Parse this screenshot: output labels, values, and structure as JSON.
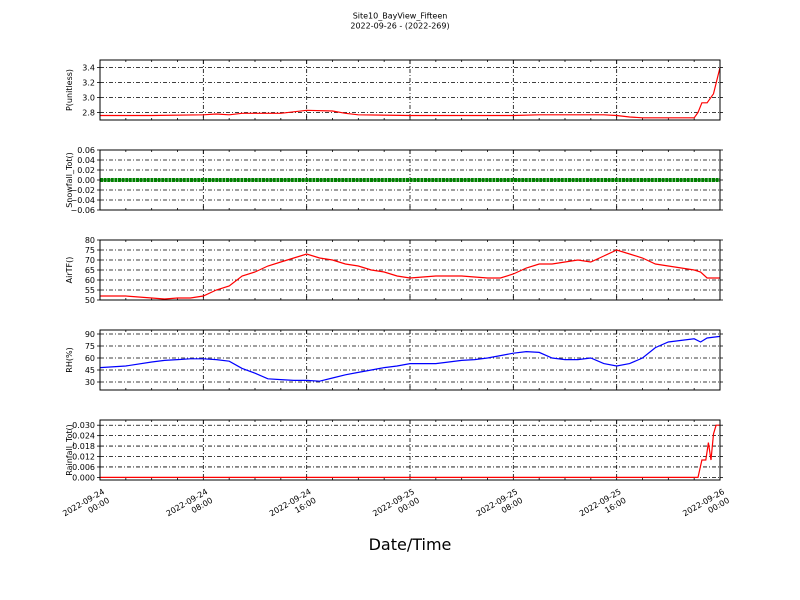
{
  "chart_data": {
    "title": "Site10_BayView_Fifteen",
    "subtitle": "2022-09-26 - (2022-269)",
    "xlabel": "Date/Time",
    "type": "line",
    "grid": true,
    "x_ticks": [
      {
        "line1": "2022-09-24",
        "line2": "00:00"
      },
      {
        "line1": "2022-09-24",
        "line2": "08:00"
      },
      {
        "line1": "2022-09-24",
        "line2": "16:00"
      },
      {
        "line1": "2022-09-25",
        "line2": "00:00"
      },
      {
        "line1": "2022-09-25",
        "line2": "08:00"
      },
      {
        "line1": "2022-09-25",
        "line2": "16:00"
      },
      {
        "line1": "2022-09-26",
        "line2": "00:00"
      }
    ],
    "xlim": [
      "2022-09-24 00:00",
      "2022-09-26 00:00"
    ],
    "panels": [
      {
        "ylabel": "P(unitless)",
        "color": "#ff0000",
        "ylim": [
          2.7,
          3.5
        ],
        "yticks": [
          2.8,
          3.0,
          3.2,
          3.4
        ],
        "tick_labels": [
          "2.8",
          "3.0",
          "3.2",
          "3.4"
        ],
        "series": {
          "hours": [
            0,
            4,
            8,
            9,
            10,
            11,
            12,
            14,
            16,
            18,
            19,
            20,
            24,
            30,
            32,
            34,
            36,
            39,
            40,
            41,
            42,
            44,
            45,
            46,
            46.3,
            46.6,
            47,
            47.5,
            48
          ],
          "values": [
            2.76,
            2.76,
            2.77,
            2.78,
            2.77,
            2.79,
            2.79,
            2.79,
            2.83,
            2.82,
            2.79,
            2.77,
            2.76,
            2.76,
            2.76,
            2.77,
            2.77,
            2.77,
            2.76,
            2.74,
            2.73,
            2.73,
            2.73,
            2.73,
            2.8,
            2.93,
            2.93,
            3.05,
            3.4
          ]
        }
      },
      {
        "ylabel": "Snowfall_Tot()",
        "color": "#008000",
        "ylim": [
          -0.06,
          0.06
        ],
        "yticks": [
          -0.06,
          -0.04,
          -0.02,
          0.0,
          0.02,
          0.04,
          0.06
        ],
        "tick_labels": [
          "−0.06",
          "−0.04",
          "−0.02",
          "0.00",
          "0.02",
          "0.04",
          "0.06"
        ],
        "series": {
          "hours": [
            0,
            48
          ],
          "values": [
            0.0,
            0.0
          ]
        }
      },
      {
        "ylabel": "AirTF()",
        "color": "#ff0000",
        "ylim": [
          50,
          80
        ],
        "yticks": [
          50,
          55,
          60,
          65,
          70,
          75,
          80
        ],
        "tick_labels": [
          "50",
          "55",
          "60",
          "65",
          "70",
          "75",
          "80"
        ],
        "series": {
          "hours": [
            0,
            2,
            4,
            5,
            6,
            7,
            8,
            9,
            10,
            11,
            12,
            13,
            14,
            15,
            16,
            17,
            18,
            19,
            20,
            21,
            22,
            23,
            24,
            25,
            26,
            27,
            28,
            29,
            30,
            31,
            32,
            33,
            34,
            35,
            36,
            37,
            38,
            39,
            40,
            41,
            42,
            43,
            44,
            45,
            46,
            46.5,
            47,
            48
          ],
          "values": [
            52,
            52,
            51,
            50.5,
            51,
            51,
            52,
            55,
            57,
            62,
            64,
            67,
            69,
            71,
            73,
            71,
            70,
            68,
            67,
            65,
            64,
            62,
            61,
            61.5,
            62,
            62,
            62,
            61.5,
            61,
            61,
            63,
            66,
            68,
            68,
            69,
            70,
            69,
            72,
            75,
            73,
            71,
            68,
            67,
            66,
            65,
            64,
            61,
            61
          ]
        }
      },
      {
        "ylabel": "RH(%)",
        "color": "#0000ff",
        "ylim": [
          20,
          95
        ],
        "yticks": [
          30,
          45,
          60,
          75,
          90
        ],
        "tick_labels": [
          "30",
          "45",
          "60",
          "75",
          "90"
        ],
        "series": {
          "hours": [
            0,
            2,
            4,
            5,
            6,
            7,
            8,
            9,
            10,
            11,
            12,
            13,
            14,
            15,
            16,
            17,
            18,
            19,
            20,
            21,
            22,
            23,
            24,
            25,
            26,
            27,
            28,
            29,
            30,
            31,
            32,
            33,
            34,
            35,
            36,
            37,
            38,
            39,
            40,
            41,
            42,
            43,
            44,
            45,
            46,
            46.5,
            47,
            48
          ],
          "values": [
            48,
            50,
            55,
            57,
            58,
            59,
            59,
            58,
            56,
            47,
            41,
            34,
            33,
            32,
            32,
            31,
            35,
            39,
            42,
            45,
            48,
            50,
            53,
            53,
            53,
            55,
            57,
            58,
            60,
            63,
            66,
            68,
            67,
            60,
            58,
            58,
            60,
            53,
            50,
            53,
            60,
            73,
            80,
            82,
            84,
            80,
            85,
            87
          ]
        }
      },
      {
        "ylabel": "Rainfall_Tot()",
        "color": "#ff0000",
        "ylim": [
          -0.0015,
          0.033
        ],
        "yticks": [
          0.0,
          0.006,
          0.012,
          0.018,
          0.024,
          0.03
        ],
        "tick_labels": [
          "0.000",
          "0.006",
          "0.012",
          "0.018",
          "0.024",
          "0.030"
        ],
        "series": {
          "hours": [
            0,
            46.3,
            46.6,
            46.9,
            47.1,
            47.3,
            47.5,
            47.7,
            48
          ],
          "values": [
            0,
            0,
            0.01,
            0.01,
            0.02,
            0.01,
            0.025,
            0.03,
            0.03
          ]
        }
      }
    ]
  }
}
